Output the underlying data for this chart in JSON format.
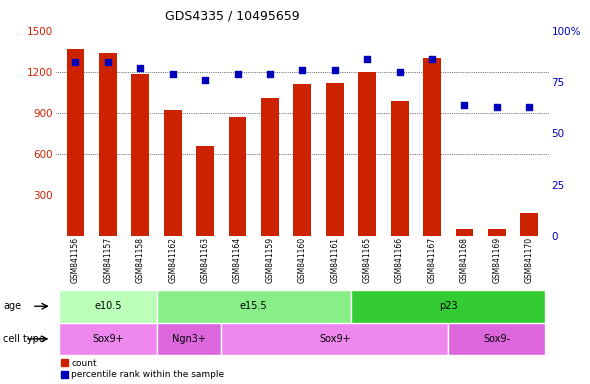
{
  "title": "GDS4335 / 10495659",
  "samples": [
    "GSM841156",
    "GSM841157",
    "GSM841158",
    "GSM841162",
    "GSM841163",
    "GSM841164",
    "GSM841159",
    "GSM841160",
    "GSM841161",
    "GSM841165",
    "GSM841166",
    "GSM841167",
    "GSM841168",
    "GSM841169",
    "GSM841170"
  ],
  "counts": [
    1370,
    1340,
    1185,
    920,
    660,
    870,
    1010,
    1110,
    1120,
    1200,
    985,
    1300,
    55,
    55,
    170
  ],
  "percentile_ranks": [
    85,
    85,
    82,
    79,
    76,
    79,
    79,
    81,
    81,
    86,
    80,
    86,
    64,
    63,
    63
  ],
  "age_groups": [
    {
      "label": "e10.5",
      "start": 0,
      "end": 3,
      "color": "#bbffbb"
    },
    {
      "label": "e15.5",
      "start": 3,
      "end": 9,
      "color": "#88ee88"
    },
    {
      "label": "p23",
      "start": 9,
      "end": 15,
      "color": "#33cc33"
    }
  ],
  "cell_type_groups": [
    {
      "label": "Sox9+",
      "start": 0,
      "end": 3,
      "color": "#ee88ee"
    },
    {
      "label": "Ngn3+",
      "start": 3,
      "end": 5,
      "color": "#dd66dd"
    },
    {
      "label": "Sox9+",
      "start": 5,
      "end": 12,
      "color": "#ee88ee"
    },
    {
      "label": "Sox9-",
      "start": 12,
      "end": 15,
      "color": "#dd66dd"
    }
  ],
  "ylim_left": [
    0,
    1500
  ],
  "ylim_right": [
    0,
    100
  ],
  "yticks_left": [
    300,
    600,
    900,
    1200,
    1500
  ],
  "yticks_right": [
    0,
    25,
    50,
    75,
    100
  ],
  "bar_color": "#cc2200",
  "dot_color": "#0000bb",
  "legend_red_label": "count",
  "legend_blue_label": "percentile rank within the sample"
}
